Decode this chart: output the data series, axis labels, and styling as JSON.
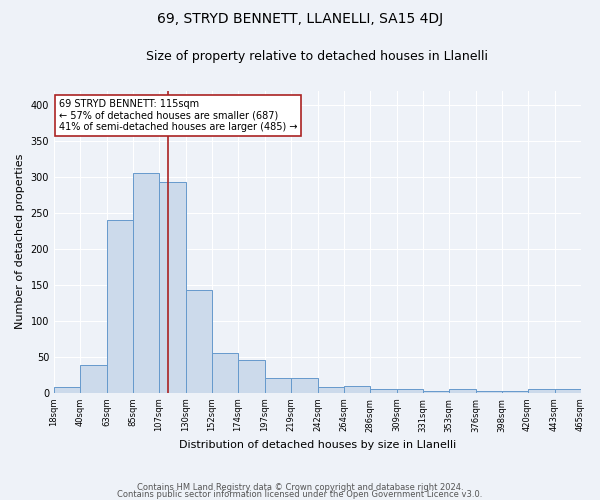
{
  "title1": "69, STRYD BENNETT, LLANELLI, SA15 4DJ",
  "title2": "Size of property relative to detached houses in Llanelli",
  "xlabel": "Distribution of detached houses by size in Llanelli",
  "ylabel": "Number of detached properties",
  "footnote1": "Contains HM Land Registry data © Crown copyright and database right 2024.",
  "footnote2": "Contains public sector information licensed under the Open Government Licence v3.0.",
  "bin_labels": [
    "18sqm",
    "40sqm",
    "63sqm",
    "85sqm",
    "107sqm",
    "130sqm",
    "152sqm",
    "174sqm",
    "197sqm",
    "219sqm",
    "242sqm",
    "264sqm",
    "286sqm",
    "309sqm",
    "331sqm",
    "353sqm",
    "376sqm",
    "398sqm",
    "420sqm",
    "443sqm",
    "465sqm"
  ],
  "bin_edges": [
    18,
    40,
    63,
    85,
    107,
    130,
    152,
    174,
    197,
    219,
    242,
    264,
    286,
    309,
    331,
    353,
    376,
    398,
    420,
    443,
    465
  ],
  "bar_heights": [
    8,
    38,
    240,
    305,
    293,
    143,
    55,
    45,
    20,
    20,
    8,
    10,
    5,
    5,
    3,
    5,
    3,
    3,
    5,
    5
  ],
  "bar_color": "#ccdaeb",
  "bar_edge_color": "#6699cc",
  "property_size": 115,
  "vline_color": "#aa2222",
  "annotation_line1": "69 STRYD BENNETT: 115sqm",
  "annotation_line2": "← 57% of detached houses are smaller (687)",
  "annotation_line3": "41% of semi-detached houses are larger (485) →",
  "annotation_box_color": "#ffffff",
  "annotation_box_edge_color": "#aa2222",
  "ylim": [
    0,
    420
  ],
  "background_color": "#eef2f8",
  "grid_color": "#ffffff",
  "title1_fontsize": 10,
  "title2_fontsize": 9,
  "ylabel_fontsize": 8,
  "xlabel_fontsize": 8,
  "tick_fontsize": 6,
  "footnote_fontsize": 6
}
